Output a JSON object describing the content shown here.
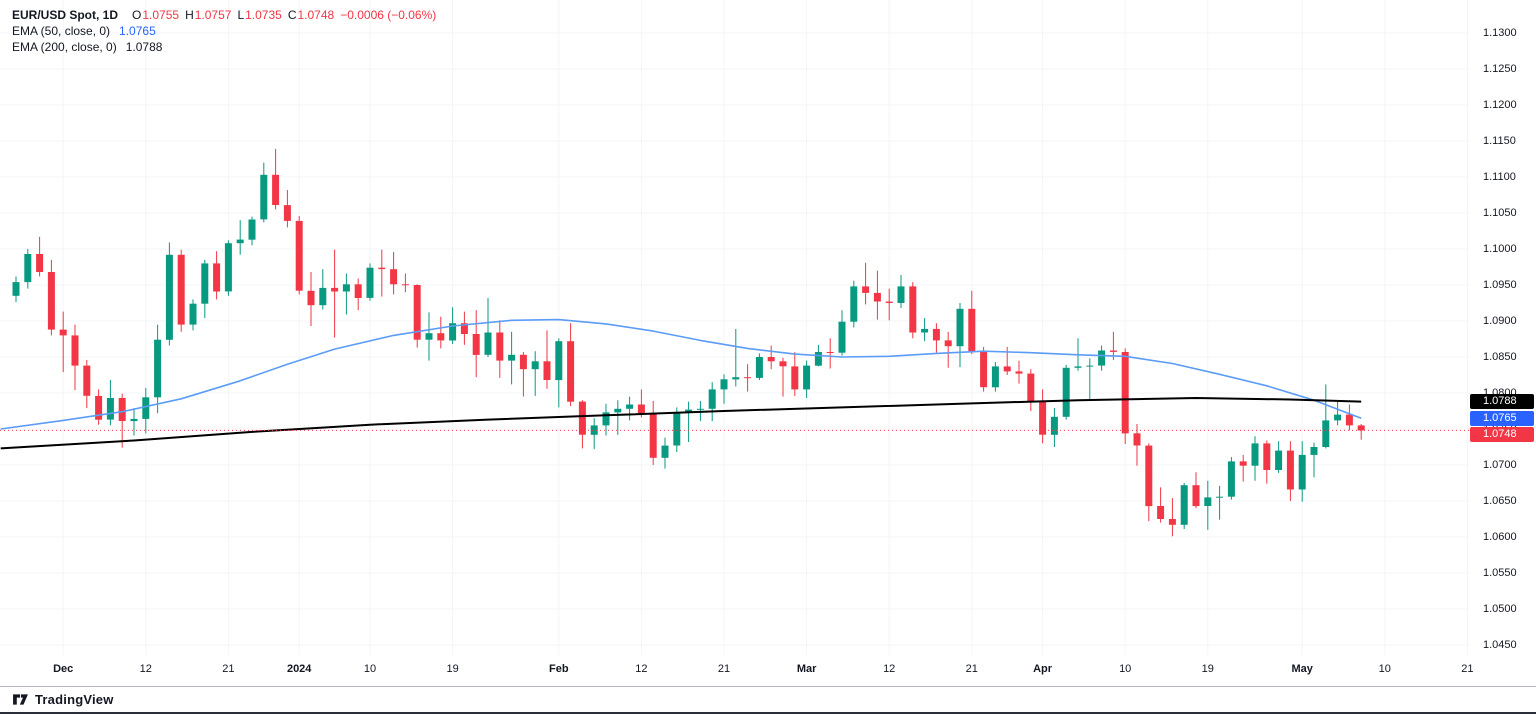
{
  "header": {
    "symbol": "EUR/USD Spot, 1D",
    "ohlc": {
      "o_label": "O",
      "o": "1.0755",
      "h_label": "H",
      "h": "1.0757",
      "l_label": "L",
      "l": "1.0735",
      "c_label": "C",
      "c": "1.0748",
      "change": "−0.0006 (−0.06%)"
    },
    "ema50": {
      "label": "EMA (50, close, 0)",
      "value": "1.0765"
    },
    "ema200": {
      "label": "EMA (200, close, 0)",
      "value": "1.0788"
    }
  },
  "footer": {
    "brand": "TradingView"
  },
  "colors": {
    "up": "#089981",
    "down": "#f23645",
    "ema50_line": "#5b9cf6",
    "ema50_text": "#2962ff",
    "ema200_line": "#000000",
    "last_price_line": "#f23645",
    "axis_text": "#131722",
    "grid": "#f3f5f8"
  },
  "price_axis": {
    "badges": [
      {
        "name": "ema200-price",
        "label": "1.0788",
        "price": 1.0788,
        "bg": "#000000"
      },
      {
        "name": "ema50-price",
        "label": "1.0765",
        "price": 1.0765,
        "bg": "#2962ff"
      },
      {
        "name": "last-price",
        "label": "1.0748",
        "price": 1.0748,
        "bg": "#f23645"
      }
    ]
  },
  "time_axis": {
    "ticks": [
      {
        "label": "Dec",
        "i": 4,
        "major": true
      },
      {
        "label": "12",
        "i": 11,
        "major": false
      },
      {
        "label": "21",
        "i": 18,
        "major": false
      },
      {
        "label": "2024",
        "i": 24,
        "major": true
      },
      {
        "label": "10",
        "i": 30,
        "major": false
      },
      {
        "label": "19",
        "i": 37,
        "major": false
      },
      {
        "label": "Feb",
        "i": 46,
        "major": true
      },
      {
        "label": "12",
        "i": 53,
        "major": false
      },
      {
        "label": "21",
        "i": 60,
        "major": false
      },
      {
        "label": "Mar",
        "i": 67,
        "major": true
      },
      {
        "label": "12",
        "i": 74,
        "major": false
      },
      {
        "label": "21",
        "i": 81,
        "major": false
      },
      {
        "label": "Apr",
        "i": 87,
        "major": true
      },
      {
        "label": "10",
        "i": 94,
        "major": false
      },
      {
        "label": "19",
        "i": 101,
        "major": false
      },
      {
        "label": "May",
        "i": 109,
        "major": true
      },
      {
        "label": "10",
        "i": 116,
        "major": false
      },
      {
        "label": "21",
        "i": 123,
        "major": false
      }
    ]
  },
  "chart_data": {
    "type": "candlestick",
    "title": "EUR/USD Spot, 1D",
    "timeframe": "1D",
    "ylim": [
      1.045,
      1.13
    ],
    "y_tick_step": 0.005,
    "y_ticks": [
      1.13,
      1.125,
      1.12,
      1.115,
      1.11,
      1.105,
      1.1,
      1.095,
      1.09,
      1.085,
      1.08,
      1.075,
      1.07,
      1.065,
      1.06,
      1.055,
      1.05,
      1.045
    ],
    "last_price": 1.0748,
    "ohlc_last": {
      "o": 1.0755,
      "h": 1.0757,
      "l": 1.0735,
      "c": 1.0748,
      "change": -0.0006,
      "change_pct": -0.06
    },
    "ema50_value": 1.0765,
    "ema200_value": 1.0788,
    "dates": [
      "2023-11-27",
      "2023-11-28",
      "2023-11-29",
      "2023-11-30",
      "2023-12-01",
      "2023-12-04",
      "2023-12-05",
      "2023-12-06",
      "2023-12-07",
      "2023-12-08",
      "2023-12-11",
      "2023-12-12",
      "2023-12-13",
      "2023-12-14",
      "2023-12-15",
      "2023-12-18",
      "2023-12-19",
      "2023-12-20",
      "2023-12-21",
      "2023-12-22",
      "2023-12-26",
      "2023-12-27",
      "2023-12-28",
      "2023-12-29",
      "2024-01-02",
      "2024-01-03",
      "2024-01-04",
      "2024-01-05",
      "2024-01-08",
      "2024-01-09",
      "2024-01-10",
      "2024-01-11",
      "2024-01-12",
      "2024-01-15",
      "2024-01-16",
      "2024-01-17",
      "2024-01-18",
      "2024-01-19",
      "2024-01-22",
      "2024-01-23",
      "2024-01-24",
      "2024-01-25",
      "2024-01-26",
      "2024-01-29",
      "2024-01-30",
      "2024-01-31",
      "2024-02-01",
      "2024-02-02",
      "2024-02-05",
      "2024-02-06",
      "2024-02-07",
      "2024-02-08",
      "2024-02-09",
      "2024-02-12",
      "2024-02-13",
      "2024-02-14",
      "2024-02-15",
      "2024-02-16",
      "2024-02-19",
      "2024-02-20",
      "2024-02-21",
      "2024-02-22",
      "2024-02-23",
      "2024-02-26",
      "2024-02-27",
      "2024-02-28",
      "2024-02-29",
      "2024-03-01",
      "2024-03-04",
      "2024-03-05",
      "2024-03-06",
      "2024-03-07",
      "2024-03-08",
      "2024-03-11",
      "2024-03-12",
      "2024-03-13",
      "2024-03-14",
      "2024-03-15",
      "2024-03-18",
      "2024-03-19",
      "2024-03-20",
      "2024-03-21",
      "2024-03-22",
      "2024-03-25",
      "2024-03-26",
      "2024-03-27",
      "2024-03-28",
      "2024-04-01",
      "2024-04-02",
      "2024-04-03",
      "2024-04-04",
      "2024-04-05",
      "2024-04-08",
      "2024-04-09",
      "2024-04-10",
      "2024-04-11",
      "2024-04-12",
      "2024-04-15",
      "2024-04-16",
      "2024-04-17",
      "2024-04-18",
      "2024-04-19",
      "2024-04-22",
      "2024-04-23",
      "2024-04-24",
      "2024-04-25",
      "2024-04-26",
      "2024-04-29",
      "2024-04-30",
      "2024-05-01",
      "2024-05-02",
      "2024-05-03",
      "2024-05-06",
      "2024-05-07",
      "2024-05-08"
    ],
    "candles": [
      [
        1.0935,
        1.0962,
        1.0926,
        1.0954
      ],
      [
        1.0954,
        1.1,
        1.0945,
        1.0993
      ],
      [
        1.0993,
        1.1017,
        1.0962,
        1.0968
      ],
      [
        1.0968,
        1.0985,
        1.088,
        1.0888
      ],
      [
        1.0888,
        1.0913,
        1.0829,
        1.088
      ],
      [
        1.088,
        1.0895,
        1.0804,
        1.0838
      ],
      [
        1.0838,
        1.0846,
        1.0779,
        1.0796
      ],
      [
        1.0796,
        1.0805,
        1.0756,
        1.0763
      ],
      [
        1.0763,
        1.0818,
        1.0755,
        1.0793
      ],
      [
        1.0793,
        1.0799,
        1.0724,
        1.0761
      ],
      [
        1.0761,
        1.0779,
        1.0741,
        1.0764
      ],
      [
        1.0764,
        1.0807,
        1.0744,
        1.0794
      ],
      [
        1.0794,
        1.0895,
        1.0772,
        1.0874
      ],
      [
        1.0874,
        1.1009,
        1.0866,
        1.0992
      ],
      [
        1.0992,
        1.0999,
        1.0885,
        1.0895
      ],
      [
        1.0895,
        1.093,
        1.0887,
        1.0924
      ],
      [
        1.0924,
        1.0985,
        1.0904,
        1.098
      ],
      [
        1.098,
        1.0997,
        1.093,
        1.0941
      ],
      [
        1.0941,
        1.1012,
        1.0935,
        1.1008
      ],
      [
        1.1008,
        1.104,
        1.0992,
        1.1013
      ],
      [
        1.1013,
        1.1045,
        1.1005,
        1.1041
      ],
      [
        1.1041,
        1.112,
        1.1037,
        1.1103
      ],
      [
        1.1103,
        1.1139,
        1.1055,
        1.1061
      ],
      [
        1.1061,
        1.1082,
        1.103,
        1.1039
      ],
      [
        1.1039,
        1.1046,
        1.0937,
        1.0942
      ],
      [
        1.0942,
        1.0968,
        1.0893,
        1.0922
      ],
      [
        1.0922,
        1.0972,
        1.0916,
        1.0946
      ],
      [
        1.0946,
        1.0999,
        1.0877,
        1.0941
      ],
      [
        1.0941,
        1.0966,
        1.0909,
        1.0951
      ],
      [
        1.0951,
        1.0959,
        1.0915,
        1.0932
      ],
      [
        1.0932,
        1.098,
        1.0928,
        1.0974
      ],
      [
        1.0974,
        1.0999,
        1.0934,
        1.0972
      ],
      [
        1.0972,
        1.0996,
        1.0937,
        1.0951
      ],
      [
        1.0951,
        1.0966,
        1.094,
        1.095
      ],
      [
        1.095,
        1.0951,
        1.0863,
        1.0874
      ],
      [
        1.0874,
        1.0912,
        1.0845,
        1.0883
      ],
      [
        1.0883,
        1.0906,
        1.0862,
        1.0873
      ],
      [
        1.0873,
        1.0919,
        1.0868,
        1.0897
      ],
      [
        1.0897,
        1.0913,
        1.0867,
        1.0882
      ],
      [
        1.0882,
        1.0915,
        1.0822,
        1.0853
      ],
      [
        1.0853,
        1.0932,
        1.085,
        1.0884
      ],
      [
        1.0884,
        1.0901,
        1.0821,
        1.0845
      ],
      [
        1.0845,
        1.0885,
        1.0812,
        1.0853
      ],
      [
        1.0853,
        1.0857,
        1.0795,
        1.0833
      ],
      [
        1.0833,
        1.0858,
        1.0796,
        1.0844
      ],
      [
        1.0844,
        1.0887,
        1.0806,
        1.0818
      ],
      [
        1.0818,
        1.0876,
        1.078,
        1.0872
      ],
      [
        1.0872,
        1.0897,
        1.0782,
        1.0788
      ],
      [
        1.0788,
        1.079,
        1.0723,
        1.0742
      ],
      [
        1.0742,
        1.0765,
        1.0722,
        1.0755
      ],
      [
        1.0755,
        1.0785,
        1.0741,
        1.0773
      ],
      [
        1.0773,
        1.079,
        1.0742,
        1.0778
      ],
      [
        1.0778,
        1.0795,
        1.0762,
        1.0784
      ],
      [
        1.0784,
        1.0805,
        1.0766,
        1.0772
      ],
      [
        1.0772,
        1.0789,
        1.07,
        1.071
      ],
      [
        1.071,
        1.0738,
        1.0695,
        1.0727
      ],
      [
        1.0727,
        1.078,
        1.0718,
        1.0773
      ],
      [
        1.0773,
        1.0788,
        1.0732,
        1.0777
      ],
      [
        1.0777,
        1.0789,
        1.0761,
        1.0778
      ],
      [
        1.0778,
        1.0815,
        1.0761,
        1.0805
      ],
      [
        1.0805,
        1.0826,
        1.0785,
        1.0819
      ],
      [
        1.0819,
        1.0889,
        1.0809,
        1.0822
      ],
      [
        1.0822,
        1.084,
        1.0802,
        1.0821
      ],
      [
        1.0821,
        1.0855,
        1.0818,
        1.085
      ],
      [
        1.085,
        1.0866,
        1.0833,
        1.0844
      ],
      [
        1.0844,
        1.0849,
        1.0795,
        1.0837
      ],
      [
        1.0837,
        1.0857,
        1.0796,
        1.0805
      ],
      [
        1.0805,
        1.0845,
        1.0793,
        1.0838
      ],
      [
        1.0838,
        1.0867,
        1.0837,
        1.0857
      ],
      [
        1.0857,
        1.0876,
        1.0834,
        1.0856
      ],
      [
        1.0856,
        1.0915,
        1.0852,
        1.0899
      ],
      [
        1.0899,
        1.0956,
        1.0891,
        1.0948
      ],
      [
        1.0948,
        1.0981,
        1.0923,
        1.0939
      ],
      [
        1.0939,
        1.097,
        1.0902,
        1.0927
      ],
      [
        1.0927,
        1.0945,
        1.0901,
        1.0925
      ],
      [
        1.0925,
        1.0964,
        1.0918,
        1.0948
      ],
      [
        1.0948,
        1.0954,
        1.0876,
        1.0884
      ],
      [
        1.0884,
        1.0904,
        1.0872,
        1.0889
      ],
      [
        1.0889,
        1.0897,
        1.0856,
        1.0873
      ],
      [
        1.0873,
        1.0885,
        1.0835,
        1.0865
      ],
      [
        1.0865,
        1.0925,
        1.0836,
        1.0917
      ],
      [
        1.0917,
        1.0942,
        1.0854,
        1.0858
      ],
      [
        1.0858,
        1.0864,
        1.0802,
        1.0808
      ],
      [
        1.0808,
        1.0843,
        1.0802,
        1.0837
      ],
      [
        1.0837,
        1.0864,
        1.0825,
        1.083
      ],
      [
        1.083,
        1.0845,
        1.0813,
        1.0827
      ],
      [
        1.0827,
        1.0833,
        1.0775,
        1.0789
      ],
      [
        1.0789,
        1.0805,
        1.073,
        1.0742
      ],
      [
        1.0742,
        1.0779,
        1.0725,
        1.0767
      ],
      [
        1.0767,
        1.0839,
        1.0763,
        1.0835
      ],
      [
        1.0835,
        1.0876,
        1.0831,
        1.0837
      ],
      [
        1.0837,
        1.0848,
        1.0791,
        1.0838
      ],
      [
        1.0838,
        1.0866,
        1.0831,
        1.0859
      ],
      [
        1.0859,
        1.0885,
        1.0846,
        1.0857
      ],
      [
        1.0857,
        1.0862,
        1.0729,
        1.0744
      ],
      [
        1.0744,
        1.0757,
        1.0699,
        1.0727
      ],
      [
        1.0727,
        1.073,
        1.0622,
        1.0643
      ],
      [
        1.0643,
        1.0669,
        1.062,
        1.0625
      ],
      [
        1.0625,
        1.0654,
        1.0601,
        1.0617
      ],
      [
        1.0617,
        1.0675,
        1.0611,
        1.0672
      ],
      [
        1.0672,
        1.069,
        1.064,
        1.0643
      ],
      [
        1.0643,
        1.0678,
        1.061,
        1.0655
      ],
      [
        1.0655,
        1.0671,
        1.0624,
        1.0656
      ],
      [
        1.0656,
        1.0711,
        1.0652,
        1.0705
      ],
      [
        1.0705,
        1.0714,
        1.0677,
        1.0699
      ],
      [
        1.0699,
        1.074,
        1.0678,
        1.073
      ],
      [
        1.073,
        1.0734,
        1.0674,
        1.0693
      ],
      [
        1.0693,
        1.0733,
        1.0689,
        1.072
      ],
      [
        1.072,
        1.0733,
        1.065,
        1.0666
      ],
      [
        1.0666,
        1.0733,
        1.0649,
        1.0714
      ],
      [
        1.0714,
        1.0731,
        1.0683,
        1.0725
      ],
      [
        1.0725,
        1.0812,
        1.0723,
        1.0762
      ],
      [
        1.0762,
        1.079,
        1.0755,
        1.077
      ],
      [
        1.077,
        1.0784,
        1.0748,
        1.0755
      ],
      [
        1.0755,
        1.0757,
        1.0735,
        1.0748
      ]
    ],
    "ema50_points": [
      {
        "i": -1.3,
        "v": 1.075
      },
      {
        "i": 4,
        "v": 1.0762
      },
      {
        "i": 9,
        "v": 1.0774
      },
      {
        "i": 14,
        "v": 1.0792
      },
      {
        "i": 19,
        "v": 1.0817
      },
      {
        "i": 23,
        "v": 1.084
      },
      {
        "i": 27,
        "v": 1.0861
      },
      {
        "i": 32,
        "v": 1.088
      },
      {
        "i": 37,
        "v": 1.0893
      },
      {
        "i": 42,
        "v": 1.0901
      },
      {
        "i": 46,
        "v": 1.0902
      },
      {
        "i": 50,
        "v": 1.0896
      },
      {
        "i": 54,
        "v": 1.0886
      },
      {
        "i": 58,
        "v": 1.0873
      },
      {
        "i": 62,
        "v": 1.0862
      },
      {
        "i": 66,
        "v": 1.0854
      },
      {
        "i": 70,
        "v": 1.085
      },
      {
        "i": 74,
        "v": 1.0851
      },
      {
        "i": 78,
        "v": 1.0855
      },
      {
        "i": 82,
        "v": 1.0858
      },
      {
        "i": 86,
        "v": 1.0856
      },
      {
        "i": 90,
        "v": 1.0853
      },
      {
        "i": 94,
        "v": 1.0851
      },
      {
        "i": 98,
        "v": 1.0841
      },
      {
        "i": 102,
        "v": 1.0826
      },
      {
        "i": 106,
        "v": 1.081
      },
      {
        "i": 110,
        "v": 1.079
      },
      {
        "i": 114,
        "v": 1.0765
      }
    ],
    "ema200_points": [
      {
        "i": -1.3,
        "v": 1.0723
      },
      {
        "i": 10,
        "v": 1.0734
      },
      {
        "i": 20,
        "v": 1.0746
      },
      {
        "i": 30,
        "v": 1.0756
      },
      {
        "i": 40,
        "v": 1.0763
      },
      {
        "i": 50,
        "v": 1.0769
      },
      {
        "i": 60,
        "v": 1.0775
      },
      {
        "i": 70,
        "v": 1.078
      },
      {
        "i": 80,
        "v": 1.0785
      },
      {
        "i": 90,
        "v": 1.079
      },
      {
        "i": 100,
        "v": 1.0793
      },
      {
        "i": 108,
        "v": 1.0791
      },
      {
        "i": 114,
        "v": 1.0788
      }
    ]
  }
}
